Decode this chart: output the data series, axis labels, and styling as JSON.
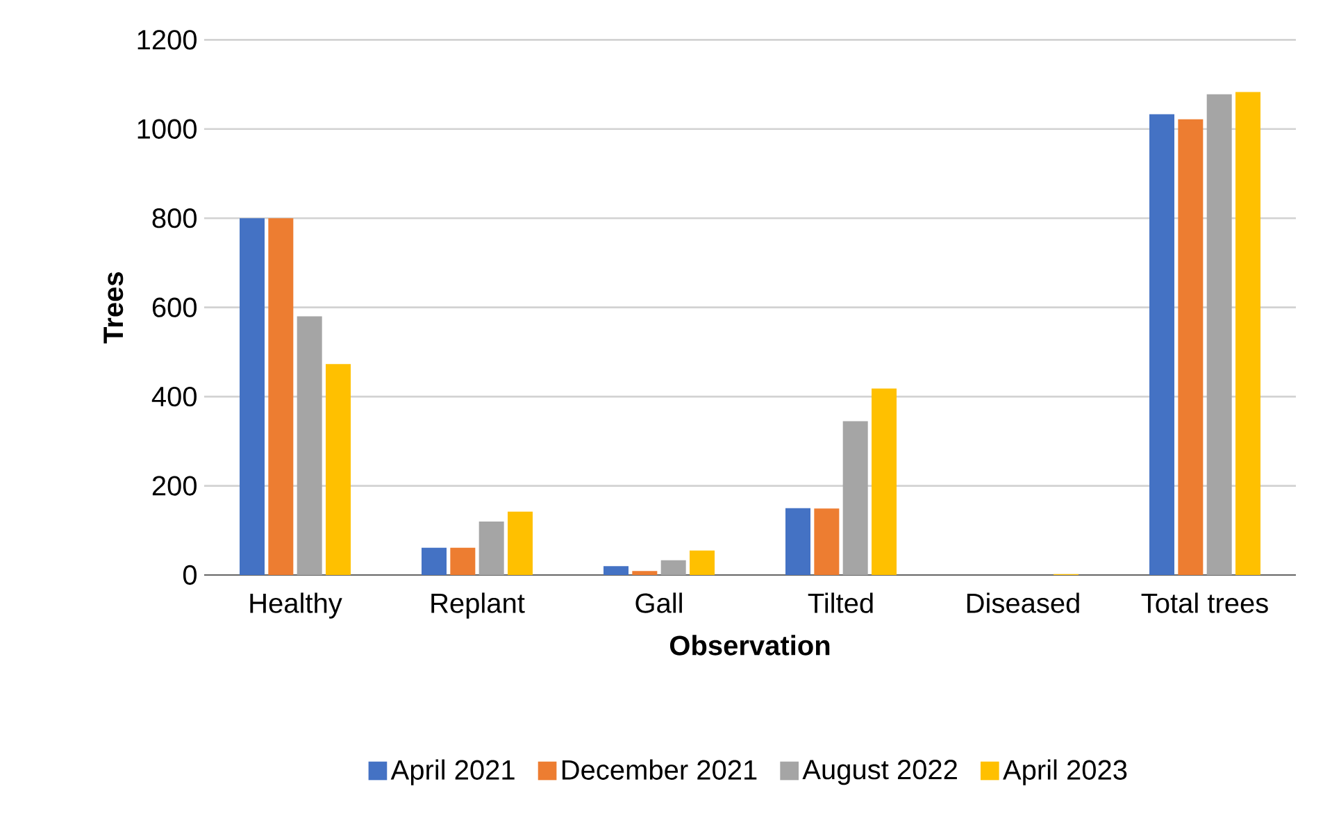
{
  "chart_data": {
    "type": "bar",
    "xlabel": "Observation",
    "ylabel": "Trees",
    "categories": [
      "Healthy",
      "Replant",
      "Gall",
      "Tilted",
      "Diseased",
      "Total trees"
    ],
    "series": [
      {
        "name": "April 2021",
        "color": "#4472c4",
        "values": [
          800,
          61,
          20,
          150,
          0,
          1033
        ]
      },
      {
        "name": "December 2021",
        "color": "#ed7d31",
        "values": [
          800,
          61,
          9,
          149,
          0,
          1022
        ]
      },
      {
        "name": "August 2022",
        "color": "#a5a5a5",
        "values": [
          580,
          120,
          33,
          345,
          0,
          1078
        ]
      },
      {
        "name": "April 2023",
        "color": "#ffc000",
        "values": [
          473,
          142,
          55,
          418,
          2,
          1083
        ]
      }
    ],
    "ylim": [
      0,
      1200
    ],
    "yticks": [
      0,
      200,
      400,
      600,
      800,
      1000,
      1200
    ],
    "grid": "y",
    "legend": "bottom"
  }
}
